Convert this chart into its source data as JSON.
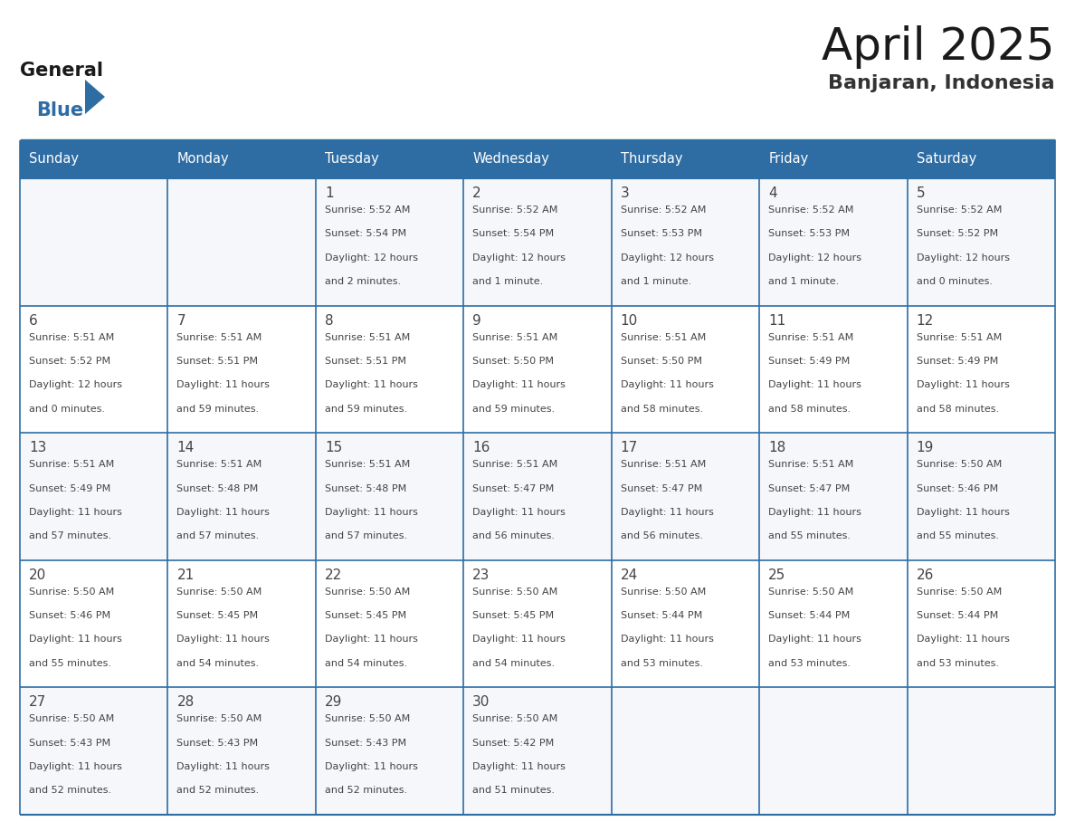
{
  "title": "April 2025",
  "subtitle": "Banjaran, Indonesia",
  "header_bg_color": "#2E6DA4",
  "header_text_color": "#FFFFFF",
  "cell_bg_even": "#F5F7FA",
  "cell_bg_odd": "#FFFFFF",
  "border_color": "#2E6DA4",
  "text_color": "#444444",
  "days_of_week": [
    "Sunday",
    "Monday",
    "Tuesday",
    "Wednesday",
    "Thursday",
    "Friday",
    "Saturday"
  ],
  "weeks": [
    [
      {
        "day": "",
        "sunrise": "",
        "sunset": "",
        "daylight": ""
      },
      {
        "day": "",
        "sunrise": "",
        "sunset": "",
        "daylight": ""
      },
      {
        "day": "1",
        "sunrise": "5:52 AM",
        "sunset": "5:54 PM",
        "daylight": "12 hours and 2 minutes."
      },
      {
        "day": "2",
        "sunrise": "5:52 AM",
        "sunset": "5:54 PM",
        "daylight": "12 hours and 1 minute."
      },
      {
        "day": "3",
        "sunrise": "5:52 AM",
        "sunset": "5:53 PM",
        "daylight": "12 hours and 1 minute."
      },
      {
        "day": "4",
        "sunrise": "5:52 AM",
        "sunset": "5:53 PM",
        "daylight": "12 hours and 1 minute."
      },
      {
        "day": "5",
        "sunrise": "5:52 AM",
        "sunset": "5:52 PM",
        "daylight": "12 hours and 0 minutes."
      }
    ],
    [
      {
        "day": "6",
        "sunrise": "5:51 AM",
        "sunset": "5:52 PM",
        "daylight": "12 hours and 0 minutes."
      },
      {
        "day": "7",
        "sunrise": "5:51 AM",
        "sunset": "5:51 PM",
        "daylight": "11 hours and 59 minutes."
      },
      {
        "day": "8",
        "sunrise": "5:51 AM",
        "sunset": "5:51 PM",
        "daylight": "11 hours and 59 minutes."
      },
      {
        "day": "9",
        "sunrise": "5:51 AM",
        "sunset": "5:50 PM",
        "daylight": "11 hours and 59 minutes."
      },
      {
        "day": "10",
        "sunrise": "5:51 AM",
        "sunset": "5:50 PM",
        "daylight": "11 hours and 58 minutes."
      },
      {
        "day": "11",
        "sunrise": "5:51 AM",
        "sunset": "5:49 PM",
        "daylight": "11 hours and 58 minutes."
      },
      {
        "day": "12",
        "sunrise": "5:51 AM",
        "sunset": "5:49 PM",
        "daylight": "11 hours and 58 minutes."
      }
    ],
    [
      {
        "day": "13",
        "sunrise": "5:51 AM",
        "sunset": "5:49 PM",
        "daylight": "11 hours and 57 minutes."
      },
      {
        "day": "14",
        "sunrise": "5:51 AM",
        "sunset": "5:48 PM",
        "daylight": "11 hours and 57 minutes."
      },
      {
        "day": "15",
        "sunrise": "5:51 AM",
        "sunset": "5:48 PM",
        "daylight": "11 hours and 57 minutes."
      },
      {
        "day": "16",
        "sunrise": "5:51 AM",
        "sunset": "5:47 PM",
        "daylight": "11 hours and 56 minutes."
      },
      {
        "day": "17",
        "sunrise": "5:51 AM",
        "sunset": "5:47 PM",
        "daylight": "11 hours and 56 minutes."
      },
      {
        "day": "18",
        "sunrise": "5:51 AM",
        "sunset": "5:47 PM",
        "daylight": "11 hours and 55 minutes."
      },
      {
        "day": "19",
        "sunrise": "5:50 AM",
        "sunset": "5:46 PM",
        "daylight": "11 hours and 55 minutes."
      }
    ],
    [
      {
        "day": "20",
        "sunrise": "5:50 AM",
        "sunset": "5:46 PM",
        "daylight": "11 hours and 55 minutes."
      },
      {
        "day": "21",
        "sunrise": "5:50 AM",
        "sunset": "5:45 PM",
        "daylight": "11 hours and 54 minutes."
      },
      {
        "day": "22",
        "sunrise": "5:50 AM",
        "sunset": "5:45 PM",
        "daylight": "11 hours and 54 minutes."
      },
      {
        "day": "23",
        "sunrise": "5:50 AM",
        "sunset": "5:45 PM",
        "daylight": "11 hours and 54 minutes."
      },
      {
        "day": "24",
        "sunrise": "5:50 AM",
        "sunset": "5:44 PM",
        "daylight": "11 hours and 53 minutes."
      },
      {
        "day": "25",
        "sunrise": "5:50 AM",
        "sunset": "5:44 PM",
        "daylight": "11 hours and 53 minutes."
      },
      {
        "day": "26",
        "sunrise": "5:50 AM",
        "sunset": "5:44 PM",
        "daylight": "11 hours and 53 minutes."
      }
    ],
    [
      {
        "day": "27",
        "sunrise": "5:50 AM",
        "sunset": "5:43 PM",
        "daylight": "11 hours and 52 minutes."
      },
      {
        "day": "28",
        "sunrise": "5:50 AM",
        "sunset": "5:43 PM",
        "daylight": "11 hours and 52 minutes."
      },
      {
        "day": "29",
        "sunrise": "5:50 AM",
        "sunset": "5:43 PM",
        "daylight": "11 hours and 52 minutes."
      },
      {
        "day": "30",
        "sunrise": "5:50 AM",
        "sunset": "5:42 PM",
        "daylight": "11 hours and 51 minutes."
      },
      {
        "day": "",
        "sunrise": "",
        "sunset": "",
        "daylight": ""
      },
      {
        "day": "",
        "sunrise": "",
        "sunset": "",
        "daylight": ""
      },
      {
        "day": "",
        "sunrise": "",
        "sunset": "",
        "daylight": ""
      }
    ]
  ],
  "fig_width": 11.88,
  "fig_height": 9.18,
  "dpi": 100
}
